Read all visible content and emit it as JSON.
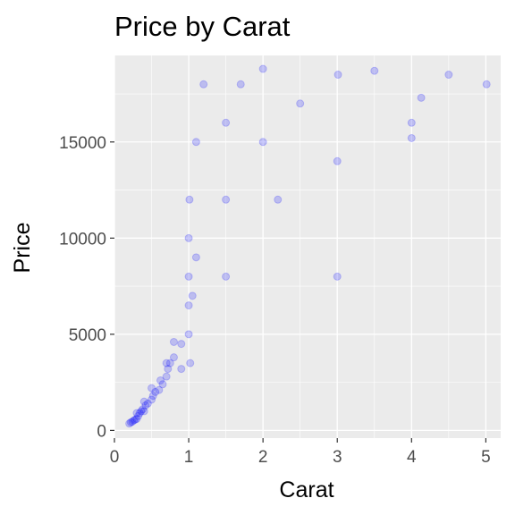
{
  "chart_data": {
    "type": "scatter",
    "title": "Price by Carat",
    "xlabel": "Carat",
    "ylabel": "Price",
    "xlim": [
      0,
      5.2
    ],
    "ylim": [
      -400,
      19500
    ],
    "x_ticks": [
      0,
      1,
      2,
      3,
      4,
      5
    ],
    "x_tick_labels": [
      "0",
      "1",
      "2",
      "3",
      "4",
      "5"
    ],
    "y_ticks": [
      0,
      5000,
      10000,
      15000
    ],
    "y_tick_labels": [
      "0",
      "5000",
      "10000",
      "15000"
    ],
    "grid": true,
    "panel_background": "#ebebeb",
    "point_color": "#0000ff",
    "point_opacity": 0.2,
    "legend": "none",
    "series": [
      {
        "points": [
          [
            0.2,
            360
          ],
          [
            0.22,
            420
          ],
          [
            0.24,
            450
          ],
          [
            0.26,
            520
          ],
          [
            0.28,
            560
          ],
          [
            0.3,
            600
          ],
          [
            0.3,
            900
          ],
          [
            0.32,
            750
          ],
          [
            0.34,
            900
          ],
          [
            0.36,
            1000
          ],
          [
            0.38,
            1100
          ],
          [
            0.4,
            1000
          ],
          [
            0.4,
            1500
          ],
          [
            0.42,
            1300
          ],
          [
            0.45,
            1400
          ],
          [
            0.5,
            1600
          ],
          [
            0.5,
            2200
          ],
          [
            0.52,
            1800
          ],
          [
            0.55,
            2000
          ],
          [
            0.6,
            2100
          ],
          [
            0.62,
            2600
          ],
          [
            0.65,
            2400
          ],
          [
            0.7,
            2800
          ],
          [
            0.7,
            3500
          ],
          [
            0.72,
            3200
          ],
          [
            0.75,
            3500
          ],
          [
            0.8,
            3800
          ],
          [
            0.8,
            4600
          ],
          [
            0.9,
            4500
          ],
          [
            0.9,
            3200
          ],
          [
            1.0,
            5000
          ],
          [
            1.0,
            6500
          ],
          [
            1.0,
            8000
          ],
          [
            1.0,
            10000
          ],
          [
            1.01,
            12000
          ],
          [
            1.02,
            3500
          ],
          [
            1.05,
            7000
          ],
          [
            1.1,
            9000
          ],
          [
            1.1,
            15000
          ],
          [
            1.2,
            18000
          ],
          [
            1.5,
            8000
          ],
          [
            1.5,
            12000
          ],
          [
            1.5,
            16000
          ],
          [
            1.7,
            18000
          ],
          [
            2.0,
            15000
          ],
          [
            2.0,
            18800
          ],
          [
            2.2,
            12000
          ],
          [
            2.5,
            17000
          ],
          [
            3.0,
            8000
          ],
          [
            3.0,
            14000
          ],
          [
            3.01,
            18500
          ],
          [
            3.5,
            18700
          ],
          [
            4.0,
            15200
          ],
          [
            4.0,
            16000
          ],
          [
            4.13,
            17300
          ],
          [
            4.5,
            18500
          ],
          [
            5.01,
            18000
          ]
        ]
      }
    ]
  }
}
